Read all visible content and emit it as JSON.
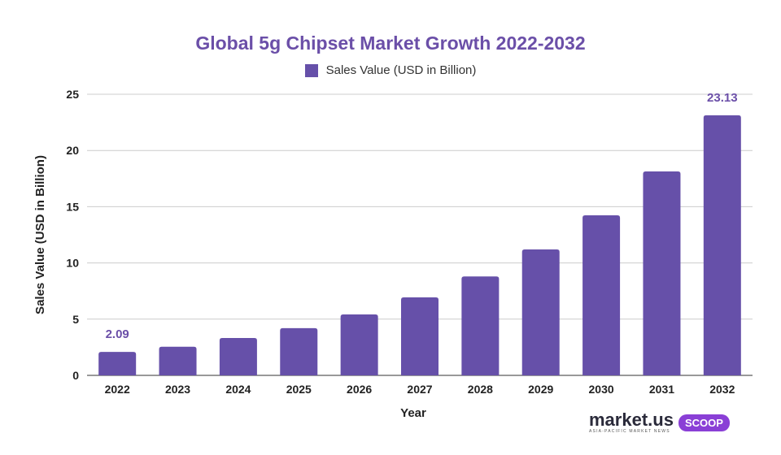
{
  "chart_data": {
    "type": "bar",
    "title": "Global 5g Chipset Market Growth 2022-2032",
    "xlabel": "Year",
    "ylabel": "Sales Value (USD in Billion)",
    "categories": [
      "2022",
      "2023",
      "2024",
      "2025",
      "2026",
      "2027",
      "2028",
      "2029",
      "2030",
      "2031",
      "2032"
    ],
    "series": [
      {
        "name": "Sales Value (USD in Billion)",
        "values": [
          2.09,
          2.55,
          3.32,
          4.2,
          5.42,
          6.94,
          8.8,
          11.2,
          14.23,
          18.14,
          23.13
        ]
      }
    ],
    "data_labels": {
      "0": "2.09",
      "10": "23.13"
    },
    "ylim": [
      0,
      25
    ],
    "yticks": [
      0,
      5,
      10,
      15,
      20,
      25
    ],
    "grid": true,
    "legend": "top-center",
    "colors": {
      "bar": "#6650a9",
      "title": "#6b4fa8",
      "label": "#6b4fa8"
    }
  },
  "logo": {
    "mark": "ɑıl",
    "brand": "market.us",
    "tagline": "ASIA-PACIFIC MARKET NEWS",
    "badge": "SCOOP"
  }
}
